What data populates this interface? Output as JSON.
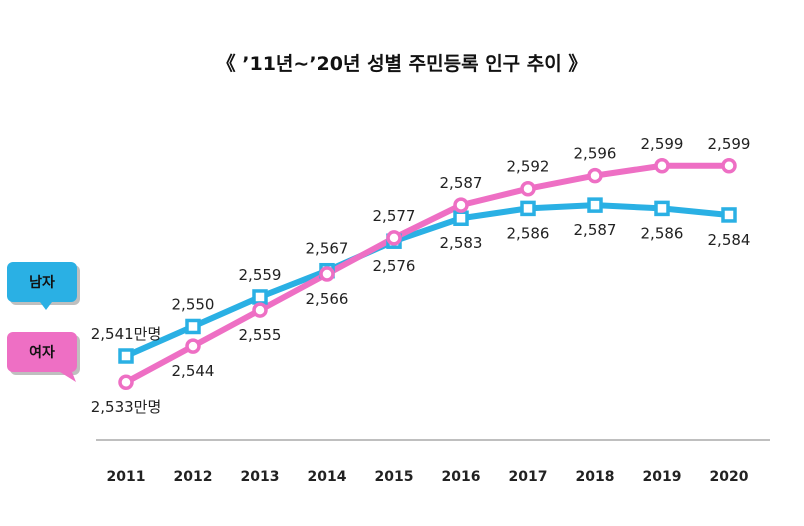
{
  "chart_data": {
    "type": "line",
    "title": "《 ’11년∼’20년 성별 주민등록 인구 추이 》",
    "categories": [
      "2011",
      "2012",
      "2013",
      "2014",
      "2015",
      "2016",
      "2017",
      "2018",
      "2019",
      "2020"
    ],
    "series": [
      {
        "name": "남자",
        "values": [
          2541,
          2550,
          2559,
          2567,
          2576,
          2583,
          2586,
          2587,
          2586,
          2584
        ],
        "labels": [
          "2,541만명",
          "2,550",
          "2,559",
          "2,567",
          "2,576",
          "2,583",
          "2,586",
          "2,587",
          "2,586",
          "2,584"
        ],
        "label_pos": [
          "above",
          "above",
          "above",
          "above",
          "below",
          "below",
          "below",
          "below",
          "below",
          "below"
        ],
        "color": "#2ab0e4",
        "marker": "square"
      },
      {
        "name": "여자",
        "values": [
          2533,
          2544,
          2555,
          2566,
          2577,
          2587,
          2592,
          2596,
          2599,
          2599
        ],
        "labels": [
          "2,533만명",
          "2,544",
          "2,555",
          "2,566",
          "2,577",
          "2,587",
          "2,592",
          "2,596",
          "2,599",
          "2,599"
        ],
        "label_pos": [
          "below",
          "below",
          "below",
          "below",
          "above",
          "above",
          "above",
          "above",
          "above",
          "above"
        ],
        "color": "#ee6fc4",
        "marker": "circle"
      }
    ],
    "ylim": [
      2520,
      2610
    ],
    "grid": false,
    "legend_position": "left"
  }
}
